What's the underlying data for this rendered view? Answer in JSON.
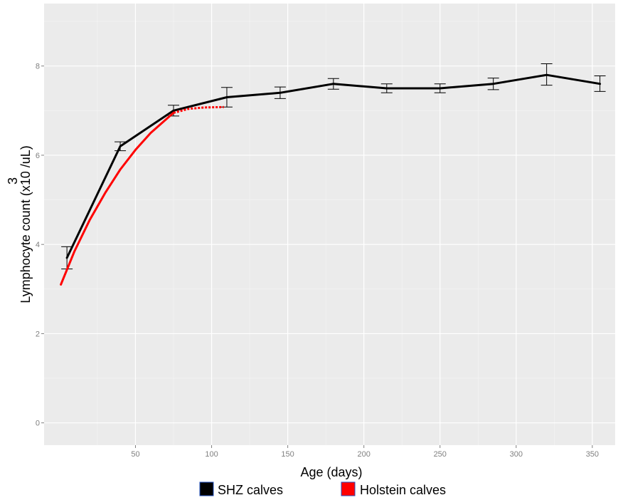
{
  "chart_data": {
    "type": "line",
    "xlabel": "Age (days)",
    "ylabel_main": "Lymphocyte count (x10 /uL)",
    "ylabel_superscript": "3",
    "xlim": [
      -10,
      365
    ],
    "ylim": [
      -0.5,
      9.4
    ],
    "x_ticks": [
      50,
      100,
      150,
      200,
      250,
      300,
      350
    ],
    "y_ticks": [
      0,
      2,
      4,
      6,
      8
    ],
    "grid": true,
    "legend_position": "bottom",
    "colors": {
      "panel_background": "#ebebeb",
      "grid": "#ffffff",
      "shz": "#000000",
      "holstein": "#ff0000"
    },
    "series": [
      {
        "name": "SHZ calves",
        "color": "#000000",
        "style": "solid",
        "x": [
          5,
          40,
          75,
          110,
          145,
          180,
          215,
          250,
          285,
          320,
          355
        ],
        "y": [
          3.7,
          6.2,
          7.0,
          7.3,
          7.4,
          7.6,
          7.5,
          7.5,
          7.6,
          7.8,
          7.6
        ],
        "error_low": [
          3.45,
          6.1,
          6.88,
          7.08,
          7.27,
          7.48,
          7.4,
          7.4,
          7.47,
          7.57,
          7.43
        ],
        "error_high": [
          3.95,
          6.3,
          7.12,
          7.52,
          7.53,
          7.72,
          7.6,
          7.6,
          7.73,
          8.05,
          7.78
        ]
      },
      {
        "name": "Holstein calves",
        "color": "#ff0000",
        "style": "solid",
        "x": [
          1,
          10,
          20,
          30,
          40,
          50,
          60,
          70,
          75
        ],
        "y": [
          3.1,
          3.85,
          4.55,
          5.15,
          5.68,
          6.12,
          6.5,
          6.8,
          6.95
        ]
      },
      {
        "name": "Holstein calves",
        "color": "#ff0000",
        "style": "dotted",
        "x": [
          75,
          85,
          95,
          108
        ],
        "y": [
          6.95,
          7.04,
          7.07,
          7.08
        ]
      }
    ]
  },
  "legend": [
    {
      "label": "SHZ calves",
      "color": "#000000"
    },
    {
      "label": "Holstein calves",
      "color": "#ff0000"
    }
  ]
}
